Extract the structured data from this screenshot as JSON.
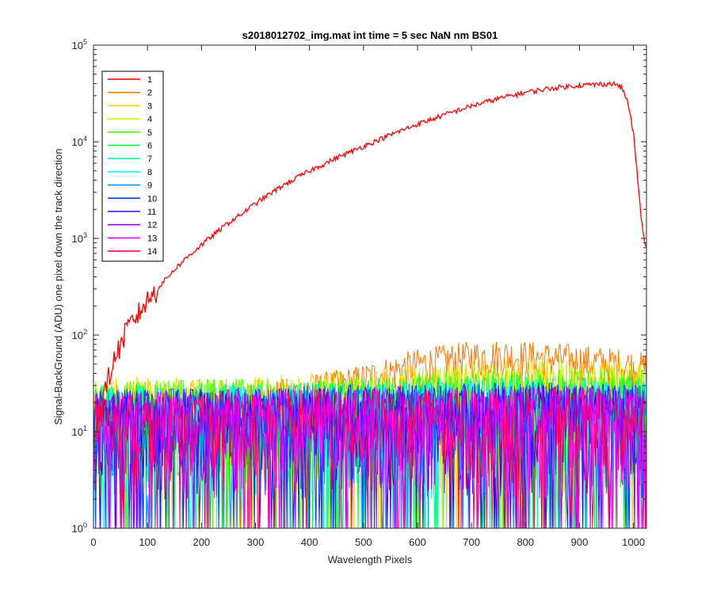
{
  "chart_data": {
    "type": "line",
    "title": "s2018012702_img.mat int time = 5 sec  NaN nm BS01",
    "xlabel": "Wavelength Pixels",
    "ylabel": "Signal-BackGround (ADU) one pixel down the track direction",
    "xlim": [
      0,
      1024
    ],
    "ylim": [
      1,
      100000
    ],
    "yscale": "log",
    "grid": false,
    "legend_position": "top-left",
    "x_ticks": [
      0,
      100,
      200,
      300,
      400,
      500,
      600,
      700,
      800,
      900,
      1000
    ],
    "y_ticks": [
      {
        "value": 1,
        "base": "10",
        "exp": "0"
      },
      {
        "value": 10,
        "base": "10",
        "exp": "1"
      },
      {
        "value": 100,
        "base": "10",
        "exp": "2"
      },
      {
        "value": 1000,
        "base": "10",
        "exp": "3"
      },
      {
        "value": 10000,
        "base": "10",
        "exp": "4"
      },
      {
        "value": 100000,
        "base": "10",
        "exp": "5"
      }
    ],
    "series": [
      {
        "name": "1",
        "color": "#ff0000",
        "x": [
          0,
          10,
          20,
          30,
          40,
          50,
          60,
          80,
          100,
          120,
          150,
          175,
          200,
          225,
          250,
          275,
          300,
          325,
          350,
          375,
          400,
          450,
          500,
          550,
          600,
          650,
          700,
          750,
          800,
          850,
          900,
          940,
          960,
          970,
          980,
          990,
          1000,
          1005,
          1010,
          1015,
          1020,
          1024
        ],
        "values": [
          8,
          15,
          25,
          40,
          60,
          80,
          110,
          160,
          230,
          310,
          480,
          650,
          860,
          1120,
          1450,
          1800,
          2300,
          2850,
          3500,
          4200,
          5000,
          6800,
          9000,
          11800,
          15200,
          19000,
          23500,
          28000,
          32500,
          36000,
          38500,
          39500,
          40000,
          39000,
          35000,
          25000,
          12000,
          6000,
          3000,
          1500,
          900,
          800
        ]
      },
      {
        "name": "2",
        "color": "#ff7700",
        "x": [
          0,
          100,
          200,
          300,
          400,
          450,
          500,
          550,
          600,
          650,
          700,
          750,
          800,
          850,
          900,
          950,
          1000,
          1024
        ],
        "values": [
          18,
          19,
          20,
          22,
          27,
          30,
          35,
          42,
          50,
          55,
          60,
          62,
          60,
          58,
          55,
          52,
          48,
          45
        ]
      },
      {
        "name": "3",
        "color": "#ffcc00",
        "x": [
          0,
          200,
          400,
          600,
          800,
          1000,
          1024
        ],
        "values": [
          14,
          15,
          16,
          20,
          24,
          22,
          21
        ]
      },
      {
        "name": "4",
        "color": "#bbff00",
        "x": [
          0,
          200,
          400,
          600,
          800,
          1000,
          1024
        ],
        "values": [
          13,
          14,
          15,
          18,
          21,
          20,
          19
        ]
      },
      {
        "name": "5",
        "color": "#55ff00",
        "x": [
          0,
          200,
          400,
          600,
          800,
          1000,
          1024
        ],
        "values": [
          13,
          14,
          14,
          16,
          18,
          17,
          17
        ]
      },
      {
        "name": "6",
        "color": "#00ff33",
        "x": [
          0,
          200,
          400,
          600,
          800,
          1000,
          1024
        ],
        "values": [
          12,
          13,
          13,
          15,
          16,
          15,
          15
        ]
      },
      {
        "name": "7",
        "color": "#00ff99",
        "x": [
          0,
          200,
          400,
          600,
          800,
          1000,
          1024
        ],
        "values": [
          12,
          12,
          13,
          14,
          15,
          14,
          14
        ]
      },
      {
        "name": "8",
        "color": "#00ffff",
        "x": [
          0,
          200,
          400,
          600,
          800,
          1000,
          1024
        ],
        "values": [
          11,
          12,
          12,
          13,
          14,
          13,
          13
        ]
      },
      {
        "name": "9",
        "color": "#0099ff",
        "x": [
          0,
          200,
          400,
          600,
          800,
          1000,
          1024
        ],
        "values": [
          11,
          11,
          12,
          13,
          13,
          13,
          12
        ]
      },
      {
        "name": "10",
        "color": "#0033ff",
        "x": [
          0,
          200,
          400,
          600,
          800,
          1000,
          1024
        ],
        "values": [
          11,
          11,
          12,
          12,
          13,
          12,
          12
        ]
      },
      {
        "name": "11",
        "color": "#3300ff",
        "x": [
          0,
          200,
          400,
          600,
          800,
          1000,
          1024
        ],
        "values": [
          10,
          11,
          11,
          12,
          12,
          12,
          12
        ]
      },
      {
        "name": "12",
        "color": "#9900ff",
        "x": [
          0,
          200,
          400,
          600,
          800,
          1000,
          1024
        ],
        "values": [
          10,
          11,
          11,
          12,
          12,
          12,
          11
        ]
      },
      {
        "name": "13",
        "color": "#ff00ff",
        "x": [
          0,
          200,
          400,
          600,
          800,
          1000,
          1024
        ],
        "values": [
          10,
          11,
          11,
          11,
          12,
          11,
          11
        ]
      },
      {
        "name": "14",
        "color": "#ff0066",
        "x": [
          0,
          200,
          400,
          600,
          800,
          1000,
          1024
        ],
        "values": [
          10,
          10,
          11,
          11,
          12,
          11,
          11
        ]
      }
    ]
  }
}
